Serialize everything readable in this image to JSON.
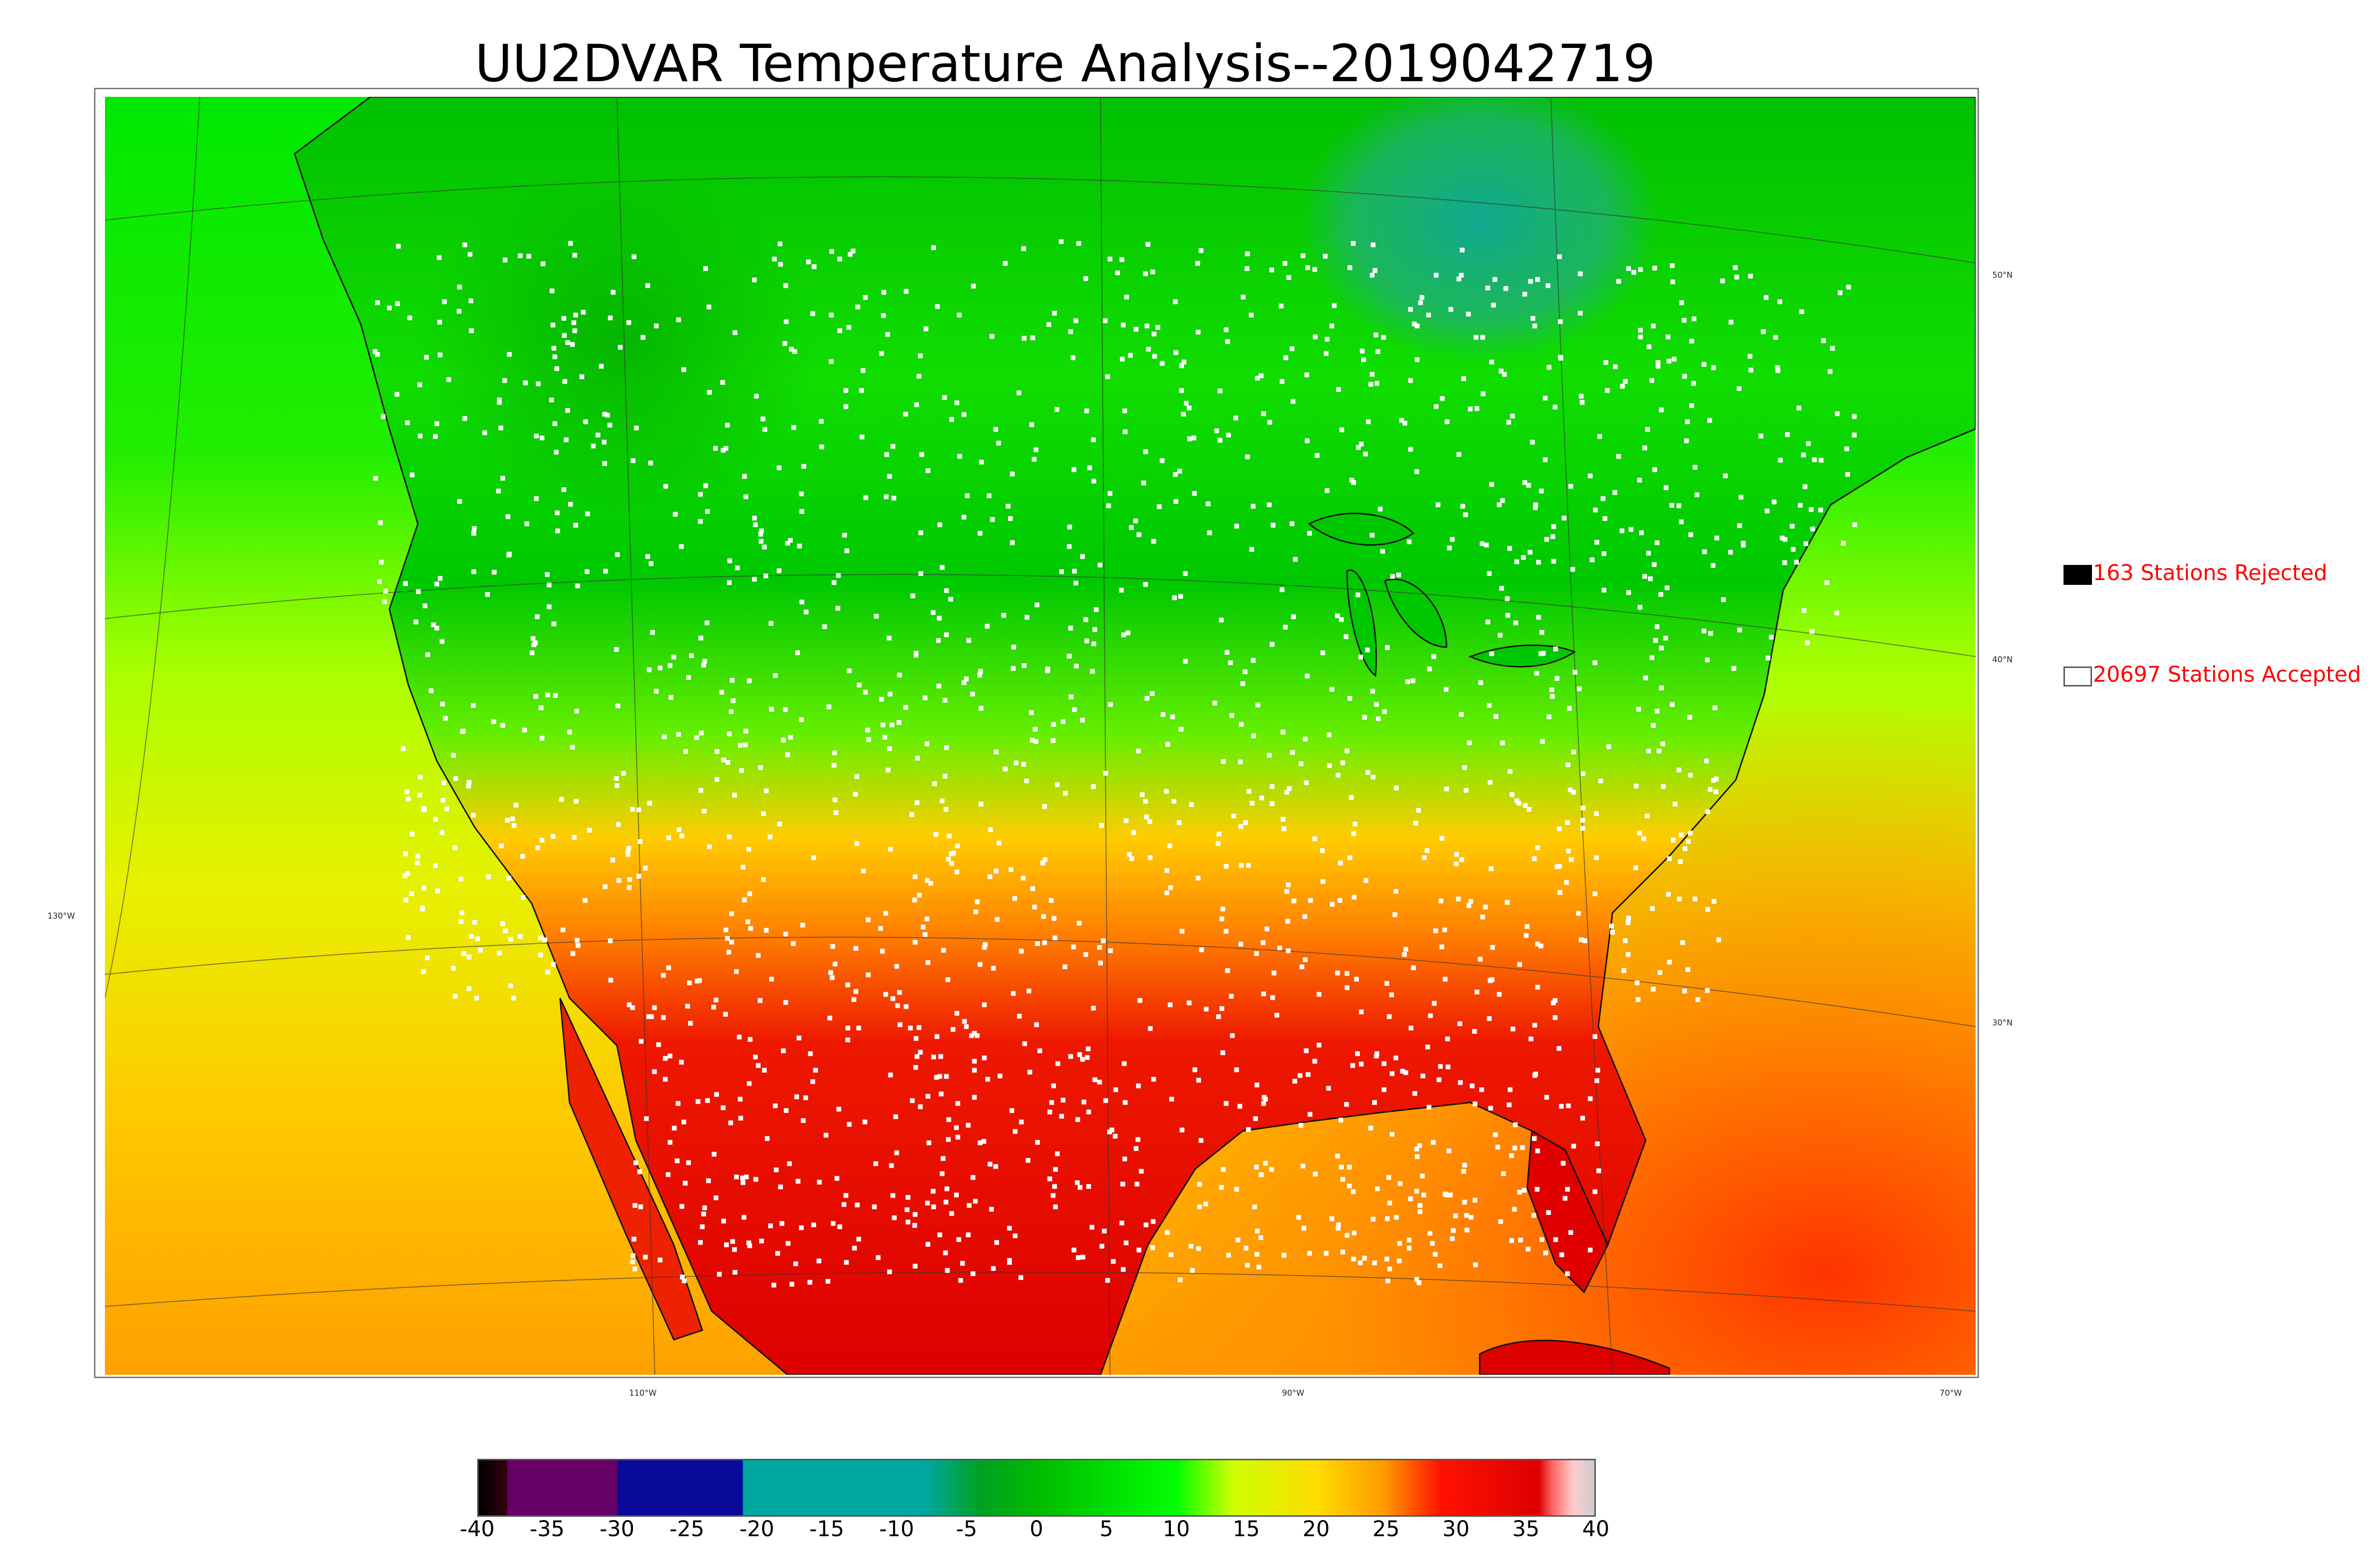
{
  "title": "UU2DVAR Temperature Analysis--2019042719",
  "graticule_labels": {
    "lon": [
      "110°W",
      "90°W",
      "70°W",
      "130°W"
    ],
    "lat": [
      "50°N",
      "40°N",
      "30°N"
    ]
  },
  "legend": {
    "rejected": {
      "label": "163 Stations Rejected",
      "color": "#000000"
    },
    "accepted": {
      "label": "20697 Stations Accepted",
      "color": "#ffffff"
    }
  },
  "colorbar": {
    "ticks": [
      "-40",
      "-35",
      "-30",
      "-25",
      "-20",
      "-15",
      "-10",
      "-5",
      "0",
      "5",
      "10",
      "15",
      "20",
      "25",
      "30",
      "35",
      "40"
    ],
    "range": [
      -40,
      40
    ],
    "stops": [
      {
        "value": -40,
        "color": "#000000"
      },
      {
        "value": -38,
        "color": "#330011"
      },
      {
        "value": -37.9,
        "color": "#660066"
      },
      {
        "value": -30.1,
        "color": "#660066"
      },
      {
        "value": -30,
        "color": "#0a0a9a"
      },
      {
        "value": -21.1,
        "color": "#0a0a9a"
      },
      {
        "value": -21,
        "color": "#00a8a0"
      },
      {
        "value": -8,
        "color": "#00a8a0"
      },
      {
        "value": -4,
        "color": "#00a020"
      },
      {
        "value": 0,
        "color": "#00bb00"
      },
      {
        "value": 10,
        "color": "#00ff00"
      },
      {
        "value": 14,
        "color": "#ccff00"
      },
      {
        "value": 20,
        "color": "#ffdd00"
      },
      {
        "value": 25,
        "color": "#ff9900"
      },
      {
        "value": 29,
        "color": "#ff1100"
      },
      {
        "value": 36,
        "color": "#dd0000"
      },
      {
        "value": 37,
        "color": "#ff6666"
      },
      {
        "value": 38.5,
        "color": "#ffcccc"
      },
      {
        "value": 40,
        "color": "#cccccc"
      }
    ]
  },
  "colors": {
    "legend_text": "#ff0000",
    "cold_north": "#00d000",
    "hudson_bay": "#10a890",
    "warm_south": "#ee0000",
    "ocean_south": "#ffb000"
  }
}
